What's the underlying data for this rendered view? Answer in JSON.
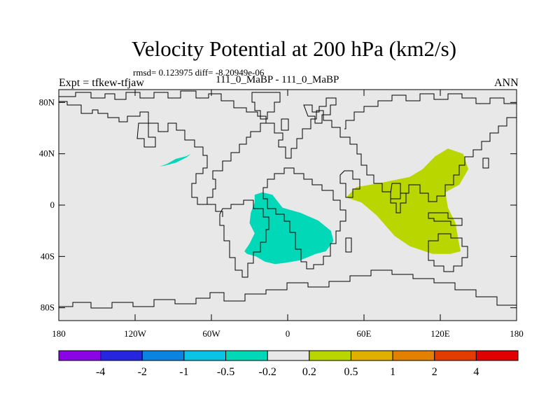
{
  "title": "Velocity Potential at 200 hPa (km2/s)",
  "stats": "rmsd= 0.123975 diff= -8.20949e-06",
  "expt": "Expt = tfkew-tfjaw",
  "cases": "111_0_MaBP - 111_0_MaBP",
  "season": "ANN",
  "map": {
    "projection": "cylindrical-equidistant",
    "lon_range": [
      -180,
      180
    ],
    "lat_range": [
      -90,
      90
    ],
    "background_color": "#e8e8e8",
    "x_ticks": [
      {
        "lon": -180,
        "label": "180"
      },
      {
        "lon": -120,
        "label": "120W"
      },
      {
        "lon": -60,
        "label": "60W"
      },
      {
        "lon": 0,
        "label": "0"
      },
      {
        "lon": 60,
        "label": "60E"
      },
      {
        "lon": 120,
        "label": "120E"
      },
      {
        "lon": 180,
        "label": "180"
      }
    ],
    "y_ticks": [
      {
        "lat": 80,
        "label": "80N"
      },
      {
        "lat": 40,
        "label": "40N"
      },
      {
        "lat": 0,
        "label": "0"
      },
      {
        "lat": -40,
        "label": "40S"
      },
      {
        "lat": -80,
        "label": "80S"
      }
    ],
    "regions": [
      {
        "name": "north-pacific-negative",
        "color": "#00d8b8",
        "points": [
          [
            -101,
            30
          ],
          [
            -95,
            32
          ],
          [
            -88,
            36
          ],
          [
            -80,
            38
          ],
          [
            -76,
            40
          ],
          [
            -80,
            37
          ],
          [
            -88,
            33
          ],
          [
            -96,
            31
          ]
        ]
      },
      {
        "name": "atlantic-africa-negative",
        "color": "#00d8b8",
        "points": [
          [
            -26,
            8
          ],
          [
            -20,
            10
          ],
          [
            -12,
            8
          ],
          [
            -4,
            -2
          ],
          [
            10,
            -6
          ],
          [
            24,
            -12
          ],
          [
            34,
            -20
          ],
          [
            36,
            -28
          ],
          [
            30,
            -36
          ],
          [
            22,
            -38
          ],
          [
            10,
            -43
          ],
          [
            -2,
            -45
          ],
          [
            -10,
            -46
          ],
          [
            -18,
            -44
          ],
          [
            -25,
            -40
          ],
          [
            -32,
            -38
          ],
          [
            -34,
            -36
          ],
          [
            -30,
            -30
          ],
          [
            -28,
            -26
          ],
          [
            -26,
            -22
          ],
          [
            -30,
            -14
          ],
          [
            -29,
            -6
          ],
          [
            -26,
            2
          ]
        ]
      },
      {
        "name": "indian-west-pacific-positive",
        "color": "#bad600",
        "points": [
          [
            46,
            6
          ],
          [
            54,
            14
          ],
          [
            72,
            17
          ],
          [
            96,
            22
          ],
          [
            106,
            28
          ],
          [
            116,
            38
          ],
          [
            126,
            44
          ],
          [
            138,
            40
          ],
          [
            142,
            28
          ],
          [
            135,
            16
          ],
          [
            124,
            10
          ],
          [
            126,
            -2
          ],
          [
            132,
            -14
          ],
          [
            134,
            -26
          ],
          [
            136,
            -36
          ],
          [
            128,
            -38
          ],
          [
            114,
            -38
          ],
          [
            96,
            -32
          ],
          [
            84,
            -24
          ],
          [
            70,
            -8
          ],
          [
            58,
            2
          ]
        ]
      }
    ]
  },
  "colorbar": {
    "segments": [
      "#8a05e5",
      "#2626e0",
      "#0a84e0",
      "#0ac4e6",
      "#00d8b8",
      "#e8e8e8",
      "#bad600",
      "#e0b000",
      "#e28000",
      "#e23c00",
      "#e00000"
    ],
    "labels": [
      "-4",
      "-2",
      "-1",
      "-0.5",
      "-0.2",
      "0.2",
      "0.5",
      "1",
      "2",
      "4"
    ]
  }
}
